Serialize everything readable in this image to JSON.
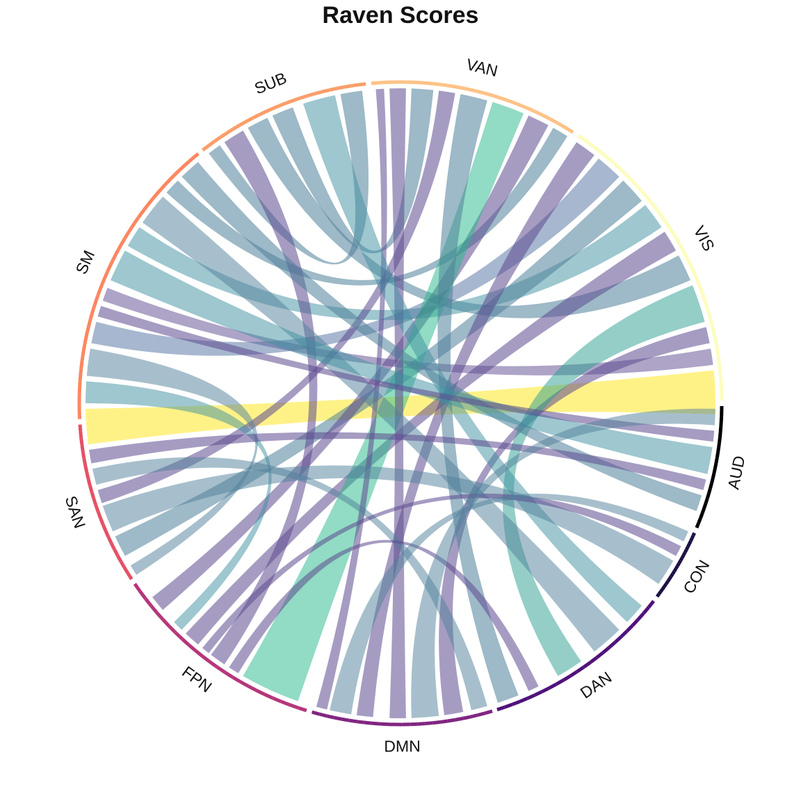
{
  "chart_data": {
    "type": "chord",
    "title": "Raven Scores",
    "sectors": [
      {
        "name": "AUD",
        "color": "#000004"
      },
      {
        "name": "CON",
        "color": "#1c1044"
      },
      {
        "name": "DAN",
        "color": "#4f127b"
      },
      {
        "name": "DMN",
        "color": "#812581"
      },
      {
        "name": "FPN",
        "color": "#b5367a"
      },
      {
        "name": "SAN",
        "color": "#e55064"
      },
      {
        "name": "SM",
        "color": "#fb8761"
      },
      {
        "name": "SUB",
        "color": "#fec287"
      },
      {
        "name": "VAN",
        "color": "#fcfdbf"
      },
      {
        "name": "VIS",
        "color": "#fffcc2"
      }
    ],
    "sector_arcs": [
      {
        "name": "AUD",
        "start": 359.5,
        "end": 337.2
      },
      {
        "name": "CON",
        "start": 336.2,
        "end": 323.0
      },
      {
        "name": "DAN",
        "start": 322.0,
        "end": 287.5
      },
      {
        "name": "DMN",
        "start": 286.6,
        "end": 254.0
      },
      {
        "name": "FPN",
        "start": 253.0,
        "end": 214.2
      },
      {
        "name": "SAN",
        "start": 213.2,
        "end": 183.8
      },
      {
        "name": "SM",
        "start": 182.8,
        "end": 129.0
      },
      {
        "name": "SUB",
        "start": 128.0,
        "end": 96.2
      },
      {
        "name": "VAN",
        "start": 95.2,
        "end": 57.5
      },
      {
        "name": "VIS",
        "start": 56.5,
        "end": 0.5
      }
    ],
    "ring_colors": {
      "AUD": "#000004",
      "CON": "#1c1044",
      "DAN": "#4f127b",
      "DMN": "#812581",
      "FPN": "#b5367a",
      "SAN": "#e55064",
      "SM": "#fb8761",
      "SUB": "#fa9e6a",
      "VAN": "#fec287",
      "VIS": "#fcfdbf"
    },
    "links": [
      {
        "a": [
          -2.0,
          6.0
        ],
        "b": [
          181.0,
          187.5
        ],
        "color": "#fde725",
        "alpha": 0.55
      },
      {
        "a": [
          7.0,
          10.0
        ],
        "b": [
          158.5,
          161.0
        ],
        "color": "#5c4a8f",
        "alpha": 0.5
      },
      {
        "a": [
          11.0,
          14.0
        ],
        "b": [
          278.0,
          281.5
        ],
        "color": "#5c4a8f",
        "alpha": 0.55
      },
      {
        "a": [
          15.0,
          22.0
        ],
        "b": [
          300.0,
          305.0
        ],
        "color": "#2a9d8f",
        "alpha": 0.5
      },
      {
        "a": [
          23.0,
          28.0
        ],
        "b": [
          115.0,
          119.0
        ],
        "color": "#4f7f99",
        "alpha": 0.55
      },
      {
        "a": [
          29.0,
          33.0
        ],
        "b": [
          227.0,
          230.0
        ],
        "color": "#5c4a8f",
        "alpha": 0.55
      },
      {
        "a": [
          34.0,
          39.0
        ],
        "b": [
          146.0,
          150.0
        ],
        "color": "#3e8fa0",
        "alpha": 0.5
      },
      {
        "a": [
          40.0,
          45.0
        ],
        "b": [
          205.0,
          209.0
        ],
        "color": "#4f7f99",
        "alpha": 0.55
      },
      {
        "a": [
          46.0,
          51.0
        ],
        "b": [
          165.0,
          169.0
        ],
        "color": "#4f6fa0",
        "alpha": 0.5
      },
      {
        "a": [
          52.0,
          56.0
        ],
        "b": [
          262.0,
          265.0
        ],
        "color": "#5c4a8f",
        "alpha": 0.55
      },
      {
        "a": [
          58.0,
          61.0
        ],
        "b": [
          135.0,
          138.0
        ],
        "color": "#4f7f99",
        "alpha": 0.55
      },
      {
        "a": [
          62.0,
          66.0
        ],
        "b": [
          218.0,
          221.0
        ],
        "color": "#5c4a8f",
        "alpha": 0.55
      },
      {
        "a": [
          67.0,
          73.0
        ],
        "b": [
          240.0,
          251.0
        ],
        "color": "#25b88a",
        "alpha": 0.5
      },
      {
        "a": [
          74.0,
          79.0
        ],
        "b": [
          288.0,
          292.0
        ],
        "color": "#4f7f99",
        "alpha": 0.55
      },
      {
        "a": [
          80.0,
          83.0
        ],
        "b": [
          196.0,
          198.5
        ],
        "color": "#5c4a8f",
        "alpha": 0.55
      },
      {
        "a": [
          84.0,
          88.0
        ],
        "b": [
          110.0,
          114.0
        ],
        "color": "#4f7f99",
        "alpha": 0.55
      },
      {
        "a": [
          89.0,
          92.0
        ],
        "b": [
          268.0,
          271.0
        ],
        "color": "#5c4a8f",
        "alpha": 0.55
      },
      {
        "a": [
          93.0,
          94.5
        ],
        "b": [
          254.5,
          256.5
        ],
        "color": "#5c4a8f",
        "alpha": 0.55
      },
      {
        "a": [
          97.0,
          101.0
        ],
        "b": [
          125.0,
          127.5
        ],
        "color": "#4f7f99",
        "alpha": 0.55
      },
      {
        "a": [
          102.0,
          108.0
        ],
        "b": [
          316.0,
          320.0
        ],
        "color": "#3e8fa0",
        "alpha": 0.5
      },
      {
        "a": [
          120.0,
          124.0
        ],
        "b": [
          233.0,
          236.0
        ],
        "color": "#5c4a8f",
        "alpha": 0.55
      },
      {
        "a": [
          130.0,
          134.0
        ],
        "b": [
          340.0,
          343.0
        ],
        "color": "#4f7f99",
        "alpha": 0.55
      },
      {
        "a": [
          139.0,
          145.0
        ],
        "b": [
          308.0,
          314.0
        ],
        "color": "#4f7f99",
        "alpha": 0.5
      },
      {
        "a": [
          151.0,
          157.0
        ],
        "b": [
          347.0,
          352.0
        ],
        "color": "#3e8fa0",
        "alpha": 0.5
      },
      {
        "a": [
          162.0,
          164.0
        ],
        "b": [
          353.0,
          355.0
        ],
        "color": "#5c4a8f",
        "alpha": 0.55
      },
      {
        "a": [
          170.0,
          175.0
        ],
        "b": [
          211.0,
          213.0
        ],
        "color": "#4f7f99",
        "alpha": 0.5
      },
      {
        "a": [
          176.0,
          180.0
        ],
        "b": [
          224.0,
          226.0
        ],
        "color": "#3e8fa0",
        "alpha": 0.5
      },
      {
        "a": [
          188.5,
          191.0
        ],
        "b": [
          344.0,
          346.0
        ],
        "color": "#5c4a8f",
        "alpha": 0.55
      },
      {
        "a": [
          192.0,
          195.0
        ],
        "b": [
          283.0,
          286.0
        ],
        "color": "#4f7f99",
        "alpha": 0.5
      },
      {
        "a": [
          199.0,
          204.0
        ],
        "b": [
          325.0,
          330.0
        ],
        "color": "#4f7f99",
        "alpha": 0.5
      },
      {
        "a": [
          231.0,
          232.5
        ],
        "b": [
          331.0,
          333.0
        ],
        "color": "#5c4a8f",
        "alpha": 0.55
      },
      {
        "a": [
          237.0,
          239.0
        ],
        "b": [
          294.0,
          296.0
        ],
        "color": "#5c4a8f",
        "alpha": 0.55
      },
      {
        "a": [
          257.0,
          261.0
        ],
        "b": [
          334.0,
          336.0
        ],
        "color": "#4f7f99",
        "alpha": 0.5
      },
      {
        "a": [
          272.0,
          277.0
        ],
        "b": [
          356.0,
          359.0
        ],
        "color": "#4f7f99",
        "alpha": 0.5
      }
    ]
  }
}
